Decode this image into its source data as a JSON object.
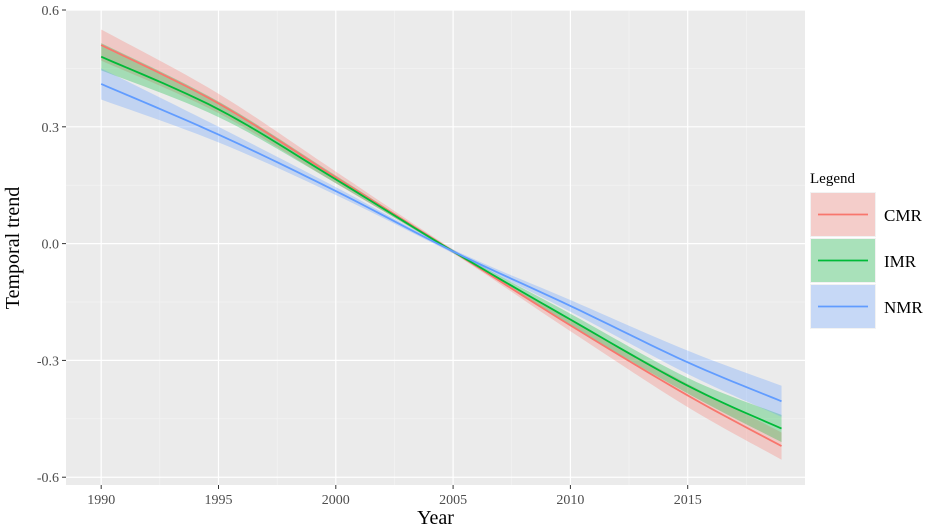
{
  "chart_data": {
    "type": "line",
    "xlabel": "Year",
    "ylabel": "Temporal trend",
    "xlim": [
      1988.5,
      2020
    ],
    "ylim": [
      -0.62,
      0.6
    ],
    "x_ticks": [
      1990,
      1995,
      2000,
      2005,
      2010,
      2015
    ],
    "x_tick_labels": [
      "1990",
      "1995",
      "2000",
      "2005",
      "2010",
      "2015"
    ],
    "y_ticks": [
      0.6,
      0.3,
      0.0,
      -0.3,
      -0.6
    ],
    "y_tick_labels": [
      "0.6",
      "0.3",
      "0.0",
      "-0.3",
      "-0.6"
    ],
    "grid": true,
    "legend": {
      "title": "Legend",
      "position": "right",
      "entries": [
        "CMR",
        "IMR",
        "NMR"
      ]
    },
    "x": [
      1990,
      1995,
      2000,
      2005,
      2010,
      2015,
      2019
    ],
    "series": [
      {
        "name": "CMR",
        "color": "#F8766D",
        "values": [
          0.51,
          0.36,
          0.17,
          -0.02,
          -0.21,
          -0.39,
          -0.52
        ],
        "lower": [
          0.47,
          0.335,
          0.155,
          -0.025,
          -0.225,
          -0.42,
          -0.555
        ],
        "upper": [
          0.55,
          0.385,
          0.185,
          -0.015,
          -0.195,
          -0.36,
          -0.485
        ]
      },
      {
        "name": "IMR",
        "color": "#00BA38",
        "values": [
          0.48,
          0.345,
          0.165,
          -0.02,
          -0.195,
          -0.365,
          -0.475
        ],
        "lower": [
          0.445,
          0.325,
          0.155,
          -0.024,
          -0.21,
          -0.385,
          -0.51
        ],
        "upper": [
          0.515,
          0.365,
          0.175,
          -0.016,
          -0.18,
          -0.345,
          -0.44
        ]
      },
      {
        "name": "NMR",
        "color": "#619CFF",
        "values": [
          0.41,
          0.28,
          0.135,
          -0.02,
          -0.16,
          -0.305,
          -0.405
        ],
        "lower": [
          0.37,
          0.26,
          0.125,
          -0.025,
          -0.175,
          -0.335,
          -0.445
        ],
        "upper": [
          0.45,
          0.3,
          0.145,
          -0.015,
          -0.145,
          -0.275,
          -0.365
        ]
      }
    ]
  }
}
